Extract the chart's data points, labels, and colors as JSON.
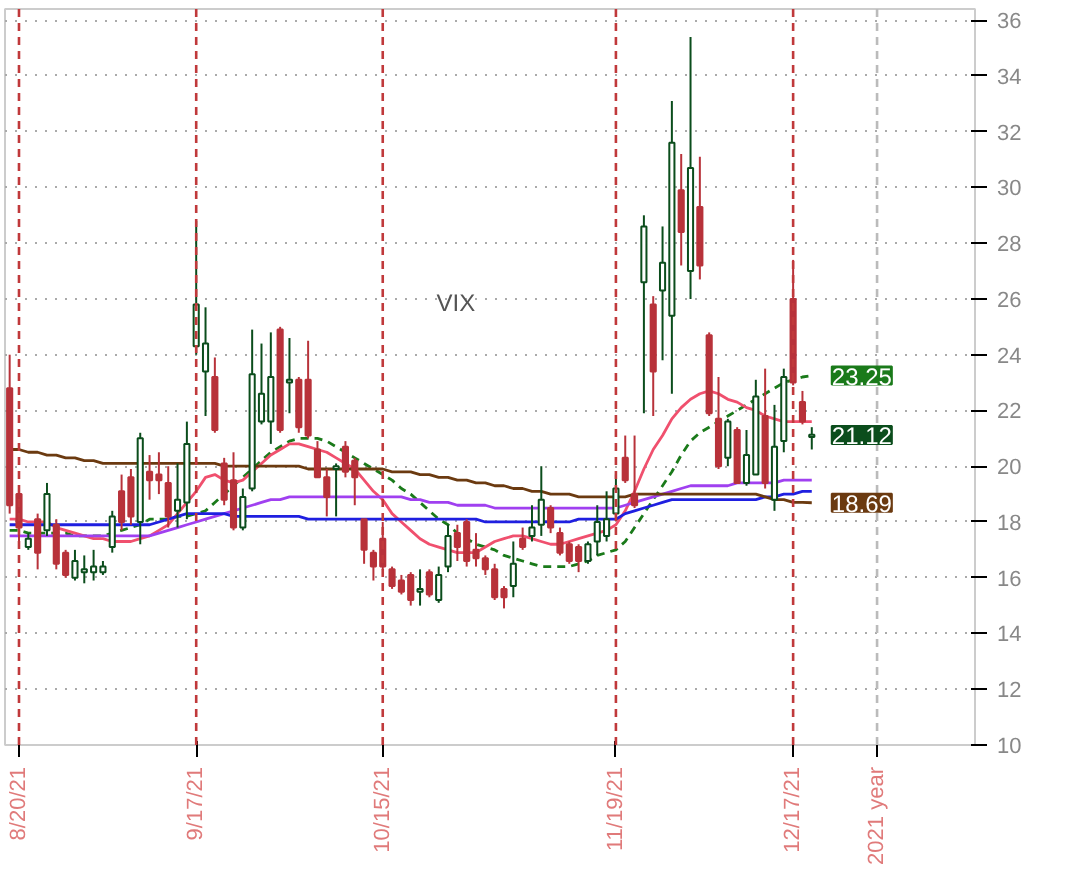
{
  "chart_data": {
    "type": "candlestick",
    "categories": [
      null,
      "8/20/21",
      null,
      null,
      null,
      null,
      null,
      null,
      null,
      null,
      null,
      null,
      null,
      null,
      null,
      null,
      null,
      null,
      null,
      null,
      "9/17/21",
      null,
      null,
      null,
      null,
      null,
      null,
      null,
      null,
      null,
      null,
      null,
      null,
      null,
      null,
      null,
      null,
      null,
      null,
      null,
      "10/15/21",
      null,
      null,
      null,
      null,
      null,
      null,
      null,
      null,
      null,
      null,
      null,
      null,
      null,
      null,
      null,
      null,
      null,
      null,
      null,
      null,
      null,
      null,
      null,
      null,
      "11/19/21",
      null,
      null,
      null,
      null,
      null,
      null,
      null,
      null,
      null,
      null,
      null,
      null,
      null,
      null,
      null,
      null,
      null,
      null,
      "12/17/21",
      null,
      null,
      null,
      null,
      null,
      null,
      null,
      null,
      "2021 year",
      null,
      null,
      null,
      null,
      null,
      null,
      null,
      null,
      null,
      null
    ],
    "ohlc": [
      [
        22.8,
        24.0,
        18.3,
        18.6
      ],
      [
        19.0,
        19.0,
        17.2,
        17.8
      ],
      [
        17.1,
        17.6,
        17.0,
        17.4
      ],
      [
        18.1,
        18.3,
        16.3,
        16.9
      ],
      [
        17.7,
        19.4,
        17.5,
        19.0
      ],
      [
        17.9,
        18.1,
        16.3,
        16.5
      ],
      [
        16.9,
        17.0,
        16.0,
        16.1
      ],
      [
        16.0,
        17.0,
        15.9,
        16.6
      ],
      [
        16.2,
        16.8,
        15.8,
        16.3
      ],
      [
        16.2,
        17.0,
        15.9,
        16.4
      ],
      [
        16.2,
        16.6,
        16.1,
        16.4
      ],
      [
        17.1,
        18.4,
        16.9,
        18.2
      ],
      [
        19.1,
        19.7,
        17.7,
        18.0
      ],
      [
        19.6,
        19.9,
        17.9,
        18.2
      ],
      [
        18.0,
        21.2,
        17.2,
        21.0
      ],
      [
        19.8,
        20.4,
        18.8,
        19.5
      ],
      [
        19.7,
        20.5,
        19.0,
        19.5
      ],
      [
        19.4,
        20.0,
        17.8,
        18.2
      ],
      [
        18.4,
        20.1,
        17.8,
        18.8
      ],
      [
        18.7,
        21.6,
        18.1,
        20.8
      ],
      [
        24.3,
        28.8,
        24.0,
        25.8
      ],
      [
        23.4,
        25.7,
        21.8,
        24.4
      ],
      [
        23.2,
        23.9,
        21.2,
        21.3
      ],
      [
        20.1,
        20.3,
        18.6,
        18.8
      ],
      [
        19.5,
        20.5,
        17.7,
        17.8
      ],
      [
        17.8,
        19.2,
        17.7,
        18.9
      ],
      [
        19.2,
        24.9,
        19.1,
        23.3
      ],
      [
        21.6,
        24.4,
        21.5,
        22.6
      ],
      [
        21.6,
        24.8,
        20.8,
        23.2
      ],
      [
        24.9,
        25.0,
        21.2,
        21.3
      ],
      [
        23.0,
        24.6,
        21.9,
        23.1
      ],
      [
        23.1,
        23.2,
        21.2,
        21.4
      ],
      [
        23.1,
        24.5,
        21.0,
        21.1
      ],
      [
        20.6,
        20.9,
        19.6,
        19.6
      ],
      [
        19.6,
        19.9,
        18.2,
        18.9
      ],
      [
        19.9,
        20.1,
        18.2,
        20.0
      ],
      [
        20.7,
        20.9,
        19.6,
        19.8
      ],
      [
        20.2,
        20.3,
        18.6,
        19.6
      ],
      [
        18.1,
        18.1,
        16.5,
        17.0
      ],
      [
        16.9,
        17.0,
        15.9,
        16.4
      ],
      [
        17.4,
        18.0,
        16.3,
        16.4
      ],
      [
        16.3,
        16.4,
        15.6,
        15.7
      ],
      [
        15.9,
        16.1,
        15.4,
        15.5
      ],
      [
        16.1,
        16.2,
        15.0,
        15.2
      ],
      [
        15.5,
        16.3,
        15.0,
        15.6
      ],
      [
        16.2,
        16.3,
        15.3,
        15.4
      ],
      [
        15.2,
        16.4,
        15.1,
        16.1
      ],
      [
        16.4,
        17.9,
        16.2,
        17.5
      ],
      [
        17.6,
        17.9,
        16.6,
        17.1
      ],
      [
        18.0,
        18.1,
        16.4,
        16.6
      ],
      [
        17.0,
        17.6,
        16.4,
        16.7
      ],
      [
        16.7,
        16.8,
        16.1,
        16.3
      ],
      [
        16.3,
        16.5,
        15.2,
        15.3
      ],
      [
        15.6,
        15.7,
        14.9,
        15.3
      ],
      [
        15.7,
        17.3,
        15.3,
        16.5
      ],
      [
        17.4,
        17.8,
        17.0,
        17.1
      ],
      [
        17.5,
        18.6,
        17.3,
        17.8
      ],
      [
        17.9,
        20.0,
        17.5,
        18.8
      ],
      [
        18.5,
        18.6,
        17.6,
        17.8
      ],
      [
        17.6,
        17.8,
        16.8,
        16.9
      ],
      [
        17.2,
        17.3,
        16.5,
        16.6
      ],
      [
        17.1,
        17.2,
        16.2,
        16.6
      ],
      [
        16.6,
        17.3,
        16.5,
        17.2
      ],
      [
        17.3,
        18.6,
        16.8,
        18.0
      ],
      [
        17.5,
        19.1,
        17.3,
        18.1
      ],
      [
        18.3,
        19.7,
        18.2,
        19.2
      ],
      [
        20.3,
        21.1,
        19.4,
        19.5
      ],
      [
        19.0,
        21.1,
        18.5,
        18.6
      ],
      [
        26.6,
        29.0,
        21.9,
        28.6
      ],
      [
        25.8,
        26.1,
        21.8,
        23.4
      ],
      [
        26.3,
        28.6,
        23.8,
        27.3
      ],
      [
        25.4,
        33.1,
        22.6,
        31.6
      ],
      [
        29.9,
        31.2,
        27.2,
        28.4
      ],
      [
        27.0,
        35.4,
        26.0,
        30.7
      ],
      [
        29.3,
        31.1,
        26.7,
        27.2
      ],
      [
        24.7,
        24.8,
        21.8,
        21.9
      ],
      [
        21.7,
        23.2,
        19.9,
        20.0
      ],
      [
        20.3,
        21.7,
        20.0,
        21.6
      ],
      [
        21.3,
        21.4,
        19.4,
        19.4
      ],
      [
        19.4,
        21.3,
        19.3,
        20.4
      ],
      [
        19.7,
        23.1,
        19.7,
        22.5
      ],
      [
        21.8,
        23.5,
        19.2,
        19.4
      ],
      [
        18.8,
        22.2,
        18.4,
        20.7
      ],
      [
        20.9,
        23.5,
        20.5,
        23.2
      ],
      [
        26.0,
        27.4,
        22.9,
        23.0
      ],
      [
        22.3,
        22.7,
        21.5,
        21.6
      ],
      [
        21.05,
        21.4,
        20.6,
        21.12
      ],
      null,
      null,
      null,
      null,
      null,
      null,
      null,
      null,
      null,
      null,
      null,
      null,
      null,
      null,
      null,
      null,
      null
    ],
    "series": [
      {
        "type": "line",
        "color": "#6b3a10",
        "value_labels": [
          null,
          null,
          null,
          null,
          null,
          null,
          null,
          null,
          null,
          null,
          null,
          null,
          null,
          null,
          null,
          null,
          null,
          null,
          null,
          null,
          null,
          null,
          null,
          null,
          null,
          null,
          null,
          null,
          null,
          null,
          null,
          null,
          null,
          null,
          null,
          null,
          null,
          null,
          null,
          null,
          null,
          null,
          null,
          null,
          null,
          null,
          null,
          null,
          null,
          null,
          null,
          null,
          null,
          null,
          null,
          null,
          null,
          null,
          null,
          null,
          null,
          null,
          null,
          null,
          null,
          null,
          null,
          null,
          null,
          null,
          null,
          null,
          null,
          null,
          null,
          null,
          null,
          null,
          null,
          null,
          null,
          null,
          null,
          null,
          null,
          null,
          "18.69",
          null,
          null,
          null,
          null,
          null,
          null,
          null,
          null,
          null,
          null,
          null,
          null,
          null,
          null,
          null,
          null,
          null
        ],
        "values": [
          20.6,
          20.6,
          20.5,
          20.5,
          20.4,
          20.4,
          20.3,
          20.3,
          20.2,
          20.2,
          20.1,
          20.1,
          20.1,
          20.1,
          20.1,
          20.1,
          20.1,
          20.1,
          20.1,
          20.1,
          20.1,
          20.1,
          20.1,
          20.0,
          20.0,
          20.0,
          20.0,
          20.0,
          20.0,
          20.0,
          20.0,
          20.0,
          19.9,
          19.9,
          19.9,
          19.9,
          19.9,
          19.9,
          19.9,
          19.9,
          19.9,
          19.8,
          19.8,
          19.8,
          19.7,
          19.7,
          19.6,
          19.6,
          19.5,
          19.5,
          19.4,
          19.4,
          19.3,
          19.3,
          19.2,
          19.2,
          19.1,
          19.1,
          19.0,
          19.0,
          19.0,
          18.9,
          18.9,
          18.9,
          18.9,
          18.9,
          18.9,
          19.0,
          19.0,
          19.0,
          19.0,
          19.0,
          19.0,
          19.0,
          19.0,
          19.0,
          19.0,
          19.0,
          19.0,
          19.0,
          19.0,
          18.9,
          18.8,
          18.8,
          18.7,
          18.7,
          18.69,
          null,
          null,
          null,
          null,
          null,
          null,
          null,
          null,
          null,
          null,
          null,
          null,
          null,
          null,
          null,
          null,
          null
        ]
      },
      {
        "type": "line",
        "color": "#1f1fe0",
        "values": [
          17.9,
          17.9,
          17.9,
          17.9,
          17.9,
          17.9,
          17.9,
          17.9,
          17.9,
          17.9,
          17.9,
          17.9,
          17.9,
          17.9,
          17.9,
          17.9,
          18.0,
          18.1,
          18.2,
          18.3,
          18.3,
          18.3,
          18.3,
          18.3,
          18.2,
          18.2,
          18.2,
          18.2,
          18.2,
          18.2,
          18.2,
          18.2,
          18.1,
          18.1,
          18.1,
          18.1,
          18.1,
          18.1,
          18.1,
          18.1,
          18.1,
          18.1,
          18.1,
          18.1,
          18.1,
          18.1,
          18.1,
          18.1,
          18.1,
          18.1,
          18.1,
          18.0,
          18.0,
          18.0,
          18.0,
          18.0,
          18.0,
          18.0,
          18.0,
          18.0,
          18.0,
          18.1,
          18.1,
          18.1,
          18.1,
          18.1,
          18.3,
          18.4,
          18.5,
          18.6,
          18.7,
          18.8,
          18.8,
          18.8,
          18.8,
          18.8,
          18.8,
          18.8,
          18.8,
          18.8,
          18.8,
          18.9,
          18.9,
          19.0,
          19.0,
          19.1,
          19.1,
          null,
          null,
          null,
          null,
          null,
          null,
          null,
          null,
          null,
          null,
          null,
          null,
          null,
          null,
          null,
          null,
          null
        ]
      },
      {
        "type": "line",
        "color": "#a040f0",
        "values": [
          17.5,
          17.5,
          17.5,
          17.5,
          17.5,
          17.5,
          17.5,
          17.5,
          17.5,
          17.5,
          17.5,
          17.5,
          17.5,
          17.5,
          17.5,
          17.5,
          17.6,
          17.7,
          17.8,
          17.9,
          18.0,
          18.1,
          18.2,
          18.3,
          18.4,
          18.5,
          18.6,
          18.7,
          18.8,
          18.8,
          18.9,
          18.9,
          18.9,
          18.9,
          18.9,
          18.9,
          18.9,
          18.9,
          18.9,
          18.9,
          18.9,
          18.9,
          18.9,
          18.8,
          18.8,
          18.7,
          18.7,
          18.7,
          18.6,
          18.6,
          18.6,
          18.6,
          18.5,
          18.5,
          18.5,
          18.5,
          18.5,
          18.5,
          18.5,
          18.5,
          18.5,
          18.5,
          18.5,
          18.5,
          18.5,
          18.5,
          18.6,
          18.7,
          18.8,
          18.9,
          19.0,
          19.1,
          19.2,
          19.3,
          19.3,
          19.3,
          19.3,
          19.3,
          19.4,
          19.4,
          19.4,
          19.4,
          19.4,
          19.5,
          19.5,
          19.5,
          19.5,
          null,
          null,
          null,
          null,
          null,
          null,
          null,
          null,
          null,
          null,
          null,
          null,
          null,
          null,
          null,
          null,
          null
        ]
      },
      {
        "type": "line",
        "color": "#f0506e",
        "values": [
          18.1,
          18.1,
          18.0,
          18.0,
          18.0,
          17.8,
          17.7,
          17.6,
          17.5,
          17.4,
          17.4,
          17.3,
          17.3,
          17.3,
          17.4,
          17.5,
          17.7,
          17.9,
          18.3,
          18.7,
          19.1,
          19.6,
          19.7,
          19.5,
          19.4,
          19.5,
          19.8,
          20.1,
          20.4,
          20.6,
          20.8,
          20.8,
          20.7,
          20.6,
          20.5,
          20.3,
          20.1,
          19.9,
          19.5,
          19.1,
          18.8,
          18.3,
          18.0,
          17.7,
          17.4,
          17.2,
          17.1,
          17.0,
          16.9,
          16.9,
          16.9,
          17.1,
          17.3,
          17.4,
          17.5,
          17.5,
          17.4,
          17.3,
          17.2,
          17.2,
          17.3,
          17.4,
          17.5,
          17.6,
          17.7,
          17.9,
          18.4,
          19.1,
          19.9,
          20.6,
          21.1,
          21.7,
          22.1,
          22.4,
          22.6,
          22.7,
          22.6,
          22.4,
          22.3,
          22.1,
          22.0,
          21.8,
          21.7,
          21.6,
          21.6,
          21.6,
          21.6,
          null,
          null,
          null,
          null,
          null,
          null,
          null,
          null,
          null,
          null,
          null,
          null,
          null,
          null,
          null,
          null,
          null
        ]
      },
      {
        "type": "line",
        "color": "#1a7a1a",
        "line_style": "dashed",
        "value_labels": [
          null,
          null,
          null,
          null,
          null,
          null,
          null,
          null,
          null,
          null,
          null,
          null,
          null,
          null,
          null,
          null,
          null,
          null,
          null,
          null,
          null,
          null,
          null,
          null,
          null,
          null,
          null,
          null,
          null,
          null,
          null,
          null,
          null,
          null,
          null,
          null,
          null,
          null,
          null,
          null,
          null,
          null,
          null,
          null,
          null,
          null,
          null,
          null,
          null,
          null,
          null,
          null,
          null,
          null,
          null,
          null,
          null,
          null,
          null,
          null,
          null,
          null,
          null,
          null,
          null,
          null,
          null,
          null,
          null,
          null,
          null,
          null,
          null,
          null,
          null,
          null,
          null,
          null,
          null,
          null,
          null,
          null,
          null,
          null,
          null,
          null,
          "23.25",
          null,
          null,
          null,
          null,
          null,
          null,
          null,
          null,
          null,
          null,
          null,
          null,
          null,
          null,
          null,
          null,
          null
        ],
        "values": [
          17.7,
          17.7,
          17.6,
          17.6,
          17.6,
          17.6,
          17.6,
          17.5,
          17.5,
          17.5,
          17.5,
          17.6,
          17.7,
          17.8,
          17.9,
          18.1,
          18.1,
          18.1,
          18.2,
          18.2,
          18.3,
          18.4,
          18.7,
          19.0,
          19.3,
          19.6,
          19.9,
          20.2,
          20.5,
          20.7,
          20.9,
          21.0,
          21.0,
          21.0,
          20.9,
          20.7,
          20.5,
          20.3,
          20.1,
          19.9,
          19.7,
          19.5,
          19.2,
          19.0,
          18.7,
          18.4,
          18.1,
          17.9,
          17.6,
          17.4,
          17.2,
          17.1,
          17.0,
          16.8,
          16.7,
          16.6,
          16.5,
          16.4,
          16.4,
          16.4,
          16.4,
          16.5,
          16.6,
          16.8,
          16.9,
          17.0,
          17.3,
          17.8,
          18.3,
          18.8,
          19.3,
          19.8,
          20.4,
          20.9,
          21.2,
          21.4,
          21.6,
          21.8,
          22.0,
          22.2,
          22.4,
          22.6,
          22.8,
          23.0,
          23.1,
          23.2,
          23.25,
          null,
          null,
          null,
          null,
          null,
          null,
          null,
          null,
          null,
          null,
          null,
          null,
          null,
          null,
          null,
          null,
          null
        ]
      }
    ],
    "annotations": [
      "VIX"
    ],
    "value_labels": [
      null,
      null,
      null,
      null,
      null,
      null,
      null,
      null,
      null,
      null,
      null,
      null,
      null,
      null,
      null,
      null,
      null,
      null,
      null,
      null,
      null,
      null,
      null,
      null,
      null,
      null,
      null,
      null,
      null,
      null,
      null,
      null,
      null,
      null,
      null,
      null,
      null,
      null,
      null,
      null,
      null,
      null,
      null,
      null,
      null,
      null,
      null,
      null,
      null,
      null,
      null,
      null,
      null,
      null,
      null,
      null,
      null,
      null,
      null,
      null,
      null,
      null,
      null,
      null,
      null,
      null,
      null,
      null,
      null,
      null,
      null,
      null,
      null,
      null,
      null,
      null,
      null,
      null,
      null,
      null,
      null,
      null,
      null,
      null,
      null,
      null,
      "21.12",
      null,
      null,
      null,
      null,
      null,
      null,
      null,
      null,
      null,
      null,
      null,
      null,
      null,
      null,
      null,
      null,
      null
    ],
    "ref_lines": [
      {
        "axis": "x",
        "value": "8/20/21",
        "color": "#c0393b",
        "line_style": "dashed"
      },
      {
        "axis": "x",
        "value": "9/17/21",
        "color": "#c0393b",
        "line_style": "dashed"
      },
      {
        "axis": "x",
        "value": "10/15/21",
        "color": "#c0393b",
        "line_style": "dashed"
      },
      {
        "axis": "x",
        "value": "11/19/21",
        "color": "#c0393b",
        "line_style": "dashed"
      },
      {
        "axis": "x",
        "value": "12/17/21",
        "color": "#c0393b",
        "line_style": "dashed"
      },
      {
        "axis": "x",
        "value": "2021 year",
        "color": "#bbbbbb",
        "line_style": "dashed"
      }
    ],
    "ylim": [
      10,
      36.4
    ],
    "yticks": [
      10,
      12,
      14,
      16,
      18,
      20,
      22,
      24,
      26,
      28,
      30,
      32,
      34,
      36
    ],
    "grid": "y"
  }
}
